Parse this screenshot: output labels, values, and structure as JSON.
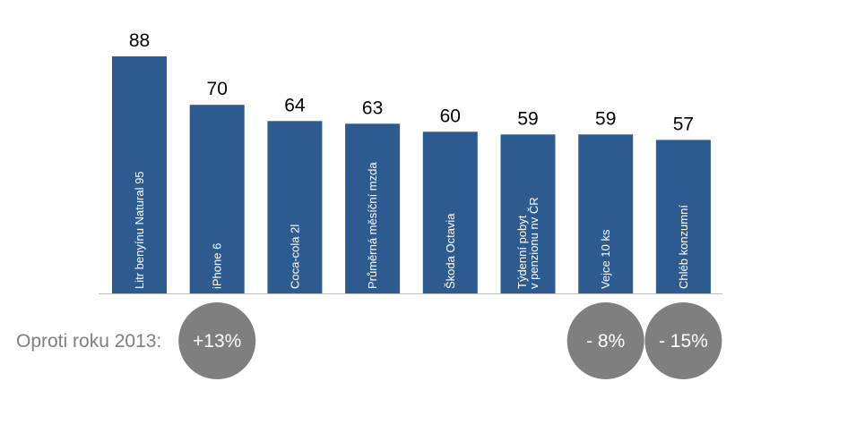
{
  "colors": {
    "bar": "#2e5b8f",
    "axis": "#bfbfbf",
    "badge": "#7f7f7f",
    "label": "#7f7f7f"
  },
  "chart_data": {
    "type": "bar",
    "title": "",
    "xlabel": "",
    "ylabel": "",
    "ylim": [
      0,
      88
    ],
    "grid": false,
    "categories": [
      [
        "Litr benyínu Natural 95"
      ],
      [
        "iPhone 6"
      ],
      [
        "Coca-cola 2l"
      ],
      [
        "Průměrná  měsíční mzda"
      ],
      [
        "Škoda Octavia"
      ],
      [
        "Týdenní pobyt",
        "v penzionu nv ČR"
      ],
      [
        "Vejce 10 ks"
      ],
      [
        "Chléb konzumní"
      ]
    ],
    "values": [
      88,
      70,
      64,
      63,
      60,
      59,
      59,
      57
    ],
    "comparison": {
      "label": "Oproti roku 2013:",
      "badges": [
        {
          "bar_index": 1,
          "text": "+13%"
        },
        {
          "bar_index": 6,
          "text": "- 8%"
        },
        {
          "bar_index": 7,
          "text": "- 15%"
        }
      ]
    }
  }
}
